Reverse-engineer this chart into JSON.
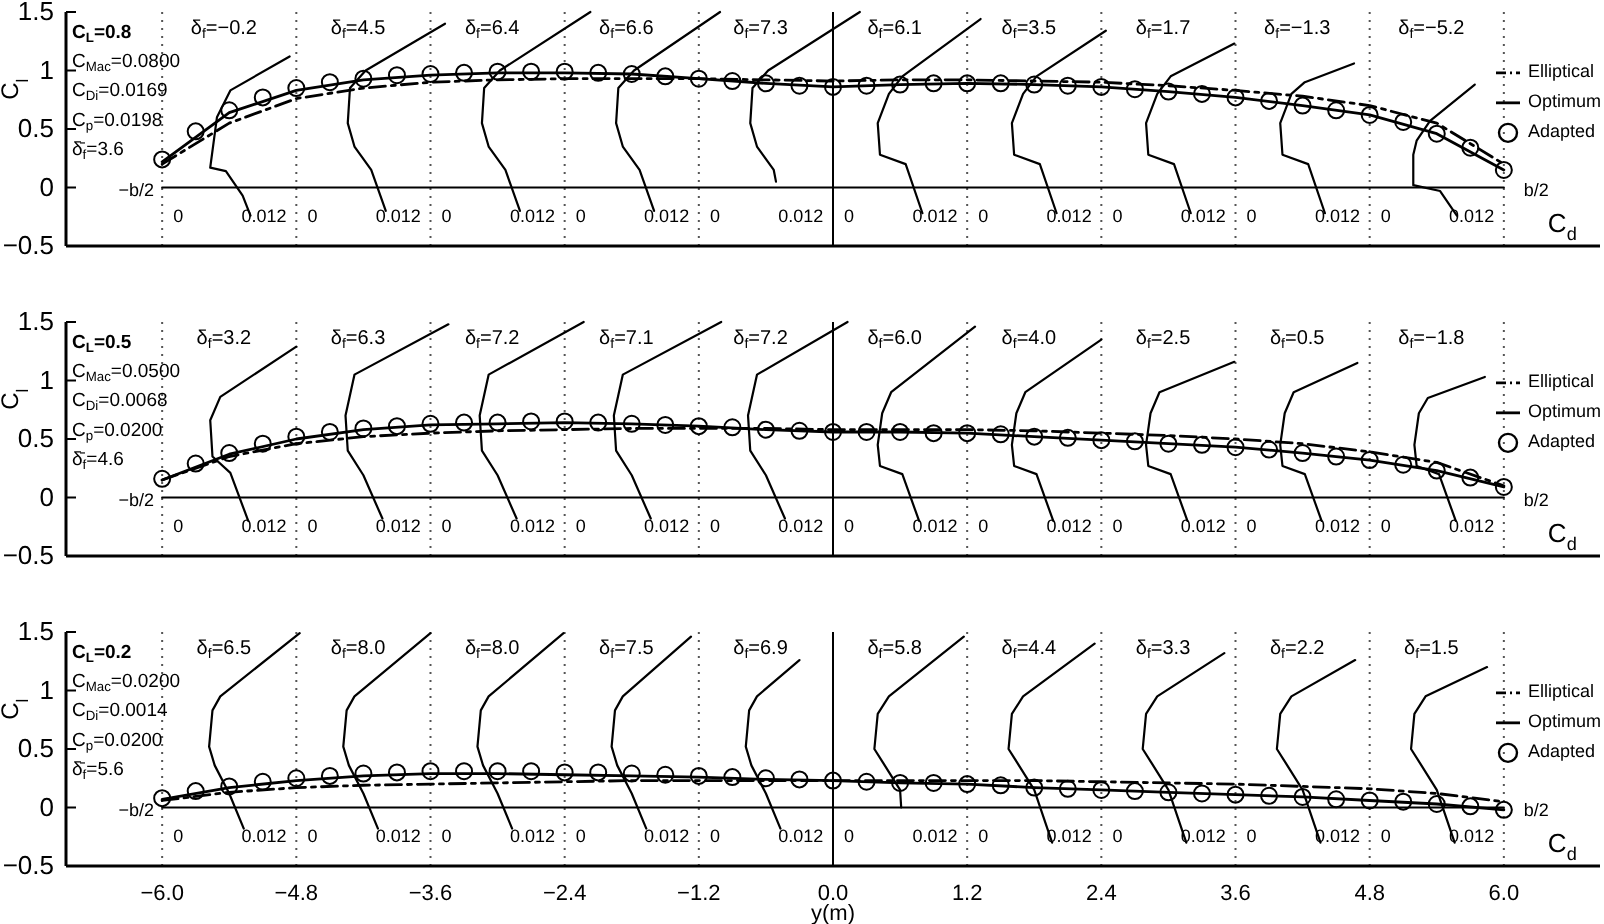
{
  "chart_data": [
    {
      "type": "line",
      "ylabel": "C$_{l}$",
      "xlim": [
        -6.86,
        6.86
      ],
      "ylim": [
        -0.5,
        1.5
      ],
      "yticks": [
        -0.5,
        0,
        0.5,
        1,
        1.5
      ],
      "tick_labels": "y",
      "legend": "right",
      "grid": false,
      "x": [
        -6,
        -5.7,
        -5.4,
        -5.1,
        -4.8,
        -4.5,
        -4.2,
        -3.9,
        -3.6,
        -3.3,
        -3,
        -2.7,
        -2.4,
        -2.1,
        -1.8,
        -1.5,
        -1.2,
        -0.9,
        -0.6,
        -0.3,
        0,
        0.3,
        0.6,
        0.9,
        1.2,
        1.5,
        1.8,
        2.1,
        2.4,
        2.7,
        3,
        3.3,
        3.6,
        3.9,
        4.2,
        4.5,
        4.8,
        5.1,
        5.4,
        5.7,
        6
      ],
      "ref_lines": [
        {
          "axis": "x",
          "value": -6,
          "line_style": "dotted",
          "color": "#555555"
        },
        {
          "axis": "x",
          "value": -4.8,
          "line_style": "dotted",
          "color": "#555555"
        },
        {
          "axis": "x",
          "value": -3.6,
          "line_style": "dotted",
          "color": "#555555"
        },
        {
          "axis": "x",
          "value": -2.4,
          "line_style": "dotted",
          "color": "#555555"
        },
        {
          "axis": "x",
          "value": -1.2,
          "line_style": "dotted",
          "color": "#555555"
        },
        {
          "axis": "x",
          "value": 0,
          "line_style": "solid",
          "color": "#000000"
        },
        {
          "axis": "x",
          "value": 1.2,
          "line_style": "dotted",
          "color": "#555555"
        },
        {
          "axis": "x",
          "value": 2.4,
          "line_style": "dotted",
          "color": "#555555"
        },
        {
          "axis": "x",
          "value": 3.6,
          "line_style": "dotted",
          "color": "#555555"
        },
        {
          "axis": "x",
          "value": 4.8,
          "line_style": "dotted",
          "color": "#555555"
        },
        {
          "axis": "x",
          "value": 6,
          "line_style": "dotted",
          "color": "#555555"
        }
      ],
      "series": [
        {
          "name": "Elliptical",
          "type": "line",
          "line_style": "dashed",
          "color": "#000000",
          "x": [
            -6,
            -5.4,
            -4.8,
            -4.2,
            -3.6,
            -3,
            -2.4,
            -1.8,
            -1.2,
            -0.6,
            0,
            0.6,
            1.2,
            1.8,
            2.4,
            3,
            3.6,
            4.2,
            4.8,
            5.4,
            6
          ],
          "values": [
            0.2,
            0.55,
            0.76,
            0.85,
            0.9,
            0.92,
            0.93,
            0.93,
            0.93,
            0.92,
            0.91,
            0.92,
            0.92,
            0.91,
            0.9,
            0.87,
            0.83,
            0.78,
            0.7,
            0.55,
            0.2
          ]
        },
        {
          "name": "Optimum",
          "type": "line",
          "line_style": "solid",
          "color": "#000000",
          "x": [
            -6,
            -5.4,
            -4.8,
            -4.2,
            -3.6,
            -3,
            -2.4,
            -1.8,
            -1.2,
            -0.6,
            0,
            0.6,
            1.2,
            1.8,
            2.4,
            3,
            3.6,
            4.2,
            4.8,
            5.4,
            6
          ],
          "values": [
            0.22,
            0.64,
            0.83,
            0.92,
            0.96,
            0.98,
            0.98,
            0.97,
            0.93,
            0.89,
            0.86,
            0.88,
            0.89,
            0.88,
            0.86,
            0.82,
            0.77,
            0.7,
            0.62,
            0.46,
            0.15
          ]
        },
        {
          "name": "Adapted",
          "type": "scatter",
          "marker": "circle",
          "color": "#000000",
          "values": [
            0.24,
            0.48,
            0.66,
            0.77,
            0.85,
            0.9,
            0.93,
            0.96,
            0.97,
            0.98,
            0.99,
            0.99,
            0.99,
            0.98,
            0.97,
            0.95,
            0.93,
            0.91,
            0.89,
            0.87,
            0.86,
            0.87,
            0.88,
            0.89,
            0.89,
            0.89,
            0.88,
            0.87,
            0.86,
            0.84,
            0.82,
            0.8,
            0.77,
            0.74,
            0.7,
            0.66,
            0.62,
            0.56,
            0.46,
            0.34,
            0.15
          ]
        },
        {
          "type": "line",
          "color": "#000000",
          "x": [
            -6,
            6
          ],
          "values": [
            0,
            0
          ]
        },
        {
          "type": "line",
          "color": "#000000",
          "x": [
            -4.86,
            -5.39,
            -5.51,
            -5.57,
            -5.43,
            -5.28,
            -5.21
          ],
          "values": [
            1.12,
            0.83,
            0.6,
            0.17,
            0.14,
            -0.07,
            -0.24
          ]
        },
        {
          "type": "line",
          "color": "#000000",
          "x": [
            -3.47,
            -4.18,
            -4.32,
            -4.34,
            -4.28,
            -4.13,
            -4.0
          ],
          "values": [
            1.4,
            1.0,
            0.85,
            0.55,
            0.35,
            0.15,
            -0.2
          ]
        },
        {
          "type": "line",
          "color": "#000000",
          "x": [
            -2.17,
            -2.98,
            -3.12,
            -3.14,
            -3.08,
            -2.93,
            -2.8
          ],
          "values": [
            1.5,
            1.0,
            0.85,
            0.55,
            0.35,
            0.15,
            -0.2
          ]
        },
        {
          "type": "line",
          "color": "#000000",
          "x": [
            -1.01,
            -1.78,
            -1.92,
            -1.94,
            -1.88,
            -1.73,
            -1.6
          ],
          "values": [
            1.5,
            1.0,
            0.85,
            0.55,
            0.35,
            0.15,
            -0.2
          ]
        },
        {
          "type": "line",
          "color": "#000000",
          "x": [
            0.24,
            -0.58,
            -0.72,
            -0.74,
            -0.68,
            -0.53,
            -0.51
          ],
          "values": [
            1.5,
            1.0,
            0.85,
            0.55,
            0.35,
            0.15,
            0.05
          ]
        },
        {
          "type": "line",
          "color": "#000000",
          "x": [
            1.32,
            0.62,
            0.5,
            0.4,
            0.42,
            0.65,
            0.8
          ],
          "values": [
            1.44,
            0.95,
            0.8,
            0.55,
            0.28,
            0.2,
            -0.22
          ]
        },
        {
          "type": "line",
          "color": "#000000",
          "x": [
            2.44,
            1.82,
            1.7,
            1.6,
            1.62,
            1.85,
            2.0
          ],
          "values": [
            1.34,
            0.95,
            0.8,
            0.55,
            0.28,
            0.2,
            -0.22
          ]
        },
        {
          "type": "line",
          "color": "#000000",
          "x": [
            3.59,
            3.02,
            2.9,
            2.8,
            2.82,
            3.05,
            3.2
          ],
          "values": [
            1.23,
            0.95,
            0.8,
            0.55,
            0.28,
            0.2,
            -0.22
          ]
        },
        {
          "type": "line",
          "color": "#000000",
          "x": [
            4.66,
            4.22,
            4.1,
            4.0,
            4.02,
            4.25,
            4.4
          ],
          "values": [
            1.06,
            0.9,
            0.8,
            0.55,
            0.28,
            0.2,
            -0.22
          ]
        },
        {
          "type": "line",
          "color": "#000000",
          "x": [
            5.74,
            5.34,
            5.22,
            5.19,
            5.19,
            5.43,
            5.58
          ],
          "values": [
            0.88,
            0.57,
            0.4,
            0.28,
            0.02,
            -0.03,
            -0.24
          ]
        }
      ],
      "annotations": [
        "C$_{L}$=0.8",
        "C$_{Mac}$=0.0800",
        "C$_{Di}$=0.0169",
        "C$_{p}$=0.0198",
        "δ̄$_{f}$=3.6",
        "δ$_{f}$=−0.2",
        "δ$_{f}$=4.5",
        "δ$_{f}$=6.4",
        "δ$_{f}$=6.6",
        "δ$_{f}$=7.3",
        "δ$_{f}$=6.1",
        "δ$_{f}$=3.5",
        "δ$_{f}$=1.7",
        "δ$_{f}$=−1.3",
        "δ$_{f}$=−5.2",
        "0",
        "0.012",
        "0",
        "0.012",
        "0",
        "0.012",
        "0",
        "0.012",
        "0",
        "0.012",
        "0",
        "0.012",
        "0",
        "0.012",
        "0",
        "0.012",
        "0",
        "0.012",
        "0",
        "0.012",
        "−b/2",
        "b/2",
        "C$_{d}$"
      ]
    },
    {
      "type": "line",
      "ylabel": "C$_{l}$",
      "xlim": [
        -6.86,
        6.86
      ],
      "ylim": [
        -0.5,
        1.5
      ],
      "yticks": [
        -0.5,
        0,
        0.5,
        1,
        1.5
      ],
      "tick_labels": "y",
      "legend": "right",
      "grid": false,
      "x": [
        -6,
        -5.7,
        -5.4,
        -5.1,
        -4.8,
        -4.5,
        -4.2,
        -3.9,
        -3.6,
        -3.3,
        -3,
        -2.7,
        -2.4,
        -2.1,
        -1.8,
        -1.5,
        -1.2,
        -0.9,
        -0.6,
        -0.3,
        0,
        0.3,
        0.6,
        0.9,
        1.2,
        1.5,
        1.8,
        2.1,
        2.4,
        2.7,
        3,
        3.3,
        3.6,
        3.9,
        4.2,
        4.5,
        4.8,
        5.1,
        5.4,
        5.7,
        6
      ],
      "ref_lines": [
        {
          "axis": "x",
          "value": -6,
          "line_style": "dotted",
          "color": "#555555"
        },
        {
          "axis": "x",
          "value": -4.8,
          "line_style": "dotted",
          "color": "#555555"
        },
        {
          "axis": "x",
          "value": -3.6,
          "line_style": "dotted",
          "color": "#555555"
        },
        {
          "axis": "x",
          "value": -2.4,
          "line_style": "dotted",
          "color": "#555555"
        },
        {
          "axis": "x",
          "value": -1.2,
          "line_style": "dotted",
          "color": "#555555"
        },
        {
          "axis": "x",
          "value": 0,
          "line_style": "solid",
          "color": "#000000"
        },
        {
          "axis": "x",
          "value": 1.2,
          "line_style": "dotted",
          "color": "#555555"
        },
        {
          "axis": "x",
          "value": 2.4,
          "line_style": "dotted",
          "color": "#555555"
        },
        {
          "axis": "x",
          "value": 3.6,
          "line_style": "dotted",
          "color": "#555555"
        },
        {
          "axis": "x",
          "value": 4.8,
          "line_style": "dotted",
          "color": "#555555"
        },
        {
          "axis": "x",
          "value": 6,
          "line_style": "dotted",
          "color": "#555555"
        }
      ],
      "series": [
        {
          "name": "Elliptical",
          "type": "line",
          "line_style": "dashed",
          "color": "#000000",
          "x": [
            -6,
            -5.4,
            -4.8,
            -4.2,
            -3.6,
            -3,
            -2.4,
            -1.8,
            -1.2,
            -0.6,
            0,
            0.6,
            1.2,
            1.8,
            2.4,
            3,
            3.6,
            4.2,
            4.8,
            5.4,
            6
          ],
          "values": [
            0.15,
            0.35,
            0.46,
            0.52,
            0.55,
            0.57,
            0.58,
            0.59,
            0.59,
            0.59,
            0.58,
            0.58,
            0.58,
            0.57,
            0.55,
            0.53,
            0.5,
            0.46,
            0.39,
            0.3,
            0.1
          ]
        },
        {
          "name": "Optimum",
          "type": "line",
          "line_style": "solid",
          "color": "#000000",
          "x": [
            -6,
            -5.4,
            -4.8,
            -4.2,
            -3.6,
            -3,
            -2.4,
            -1.8,
            -1.2,
            -0.6,
            0,
            0.6,
            1.2,
            1.8,
            2.4,
            3,
            3.6,
            4.2,
            4.8,
            5.4,
            6
          ],
          "values": [
            0.15,
            0.37,
            0.5,
            0.58,
            0.62,
            0.63,
            0.64,
            0.63,
            0.61,
            0.58,
            0.56,
            0.56,
            0.55,
            0.52,
            0.49,
            0.46,
            0.43,
            0.38,
            0.32,
            0.23,
            0.09
          ]
        },
        {
          "name": "Adapted",
          "type": "scatter",
          "marker": "circle",
          "color": "#000000",
          "values": [
            0.16,
            0.29,
            0.38,
            0.46,
            0.52,
            0.56,
            0.59,
            0.61,
            0.63,
            0.64,
            0.64,
            0.65,
            0.65,
            0.64,
            0.63,
            0.62,
            0.61,
            0.6,
            0.58,
            0.57,
            0.56,
            0.56,
            0.56,
            0.55,
            0.55,
            0.54,
            0.52,
            0.51,
            0.49,
            0.48,
            0.46,
            0.45,
            0.43,
            0.41,
            0.38,
            0.35,
            0.32,
            0.28,
            0.23,
            0.17,
            0.09
          ]
        },
        {
          "type": "line",
          "color": "#000000",
          "x": [
            -6,
            6
          ],
          "values": [
            0,
            0
          ]
        },
        {
          "type": "line",
          "color": "#000000",
          "x": [
            -4.8,
            -5.48,
            -5.57,
            -5.55,
            -5.39,
            -5.23
          ],
          "values": [
            1.29,
            0.86,
            0.66,
            0.35,
            0.21,
            -0.2
          ]
        },
        {
          "type": "line",
          "color": "#000000",
          "x": [
            -3.44,
            -4.28,
            -4.36,
            -4.34,
            -4.2,
            -4.03
          ],
          "values": [
            1.48,
            1.05,
            0.7,
            0.4,
            0.19,
            -0.18
          ]
        },
        {
          "type": "line",
          "color": "#000000",
          "x": [
            -2.23,
            -3.08,
            -3.16,
            -3.14,
            -3.0,
            -2.83
          ],
          "values": [
            1.5,
            1.05,
            0.7,
            0.4,
            0.19,
            -0.18
          ]
        },
        {
          "type": "line",
          "color": "#000000",
          "x": [
            -1.0,
            -1.88,
            -1.96,
            -1.94,
            -1.8,
            -1.63
          ],
          "values": [
            1.5,
            1.05,
            0.7,
            0.4,
            0.19,
            -0.18
          ]
        },
        {
          "type": "line",
          "color": "#000000",
          "x": [
            0.13,
            -0.68,
            -0.76,
            -0.74,
            -0.6,
            -0.43
          ],
          "values": [
            1.5,
            1.05,
            0.7,
            0.4,
            0.19,
            -0.18
          ]
        },
        {
          "type": "line",
          "color": "#000000",
          "x": [
            1.27,
            0.52,
            0.44,
            0.4,
            0.42,
            0.62,
            0.77
          ],
          "values": [
            1.46,
            0.9,
            0.72,
            0.45,
            0.27,
            0.2,
            -0.2
          ]
        },
        {
          "type": "line",
          "color": "#000000",
          "x": [
            2.4,
            1.72,
            1.64,
            1.6,
            1.62,
            1.82,
            1.97
          ],
          "values": [
            1.35,
            0.9,
            0.72,
            0.45,
            0.27,
            0.2,
            -0.2
          ]
        },
        {
          "type": "line",
          "color": "#000000",
          "x": [
            3.59,
            2.92,
            2.84,
            2.8,
            2.82,
            3.02,
            3.17
          ],
          "values": [
            1.16,
            0.9,
            0.72,
            0.45,
            0.27,
            0.2,
            -0.2
          ]
        },
        {
          "type": "line",
          "color": "#000000",
          "x": [
            4.69,
            4.12,
            4.04,
            4.0,
            4.02,
            4.22,
            4.37
          ],
          "values": [
            1.15,
            0.9,
            0.72,
            0.45,
            0.27,
            0.2,
            -0.2
          ]
        },
        {
          "type": "line",
          "color": "#000000",
          "x": [
            5.83,
            5.32,
            5.24,
            5.2,
            5.22,
            5.42,
            5.57
          ],
          "values": [
            1.03,
            0.85,
            0.72,
            0.45,
            0.27,
            0.2,
            -0.2
          ]
        }
      ],
      "annotations": [
        "C$_{L}$=0.5",
        "C$_{Mac}$=0.0500",
        "C$_{Di}$=0.0068",
        "C$_{p}$=0.0200",
        "δ̄$_{f}$=4.6",
        "δ$_{f}$=3.2",
        "δ$_{f}$=6.3",
        "δ$_{f}$=7.2",
        "δ$_{f}$=7.1",
        "δ$_{f}$=7.2",
        "δ$_{f}$=6.0",
        "δ$_{f}$=4.0",
        "δ$_{f}$=2.5",
        "δ$_{f}$=0.5",
        "δ$_{f}$=−1.8",
        "0",
        "0.012",
        "0",
        "0.012",
        "0",
        "0.012",
        "0",
        "0.012",
        "0",
        "0.012",
        "0",
        "0.012",
        "0",
        "0.012",
        "0",
        "0.012",
        "0",
        "0.012",
        "0",
        "0.012",
        "−b/2",
        "b/2",
        "C$_{d}$"
      ]
    },
    {
      "type": "line",
      "ylabel": "C$_{l}$",
      "xlabel": "y(m)",
      "xlim": [
        -6.86,
        6.86
      ],
      "ylim": [
        -0.5,
        1.5
      ],
      "yticks": [
        -0.5,
        0,
        0.5,
        1,
        1.5
      ],
      "xticks": [
        {
          "value": -6,
          "label": "−6.0"
        },
        {
          "value": -4.8,
          "label": "−4.8"
        },
        {
          "value": -3.6,
          "label": "−3.6"
        },
        {
          "value": -2.4,
          "label": "−2.4"
        },
        {
          "value": -1.2,
          "label": "−1.2"
        },
        {
          "value": 0,
          "label": "0.0"
        },
        1.2,
        2.4,
        3.6,
        4.8,
        {
          "value": 6,
          "label": "6.0"
        }
      ],
      "legend": "right",
      "grid": false,
      "x": [
        -6,
        -5.7,
        -5.4,
        -5.1,
        -4.8,
        -4.5,
        -4.2,
        -3.9,
        -3.6,
        -3.3,
        -3,
        -2.7,
        -2.4,
        -2.1,
        -1.8,
        -1.5,
        -1.2,
        -0.9,
        -0.6,
        -0.3,
        0,
        0.3,
        0.6,
        0.9,
        1.2,
        1.5,
        1.8,
        2.1,
        2.4,
        2.7,
        3,
        3.3,
        3.6,
        3.9,
        4.2,
        4.5,
        4.8,
        5.1,
        5.4,
        5.7,
        6
      ],
      "ref_lines": [
        {
          "axis": "x",
          "value": -6,
          "line_style": "dotted",
          "color": "#555555"
        },
        {
          "axis": "x",
          "value": -4.8,
          "line_style": "dotted",
          "color": "#555555"
        },
        {
          "axis": "x",
          "value": -3.6,
          "line_style": "dotted",
          "color": "#555555"
        },
        {
          "axis": "x",
          "value": -2.4,
          "line_style": "dotted",
          "color": "#555555"
        },
        {
          "axis": "x",
          "value": -1.2,
          "line_style": "dotted",
          "color": "#555555"
        },
        {
          "axis": "x",
          "value": 0,
          "line_style": "solid",
          "color": "#000000"
        },
        {
          "axis": "x",
          "value": 1.2,
          "line_style": "dotted",
          "color": "#555555"
        },
        {
          "axis": "x",
          "value": 2.4,
          "line_style": "dotted",
          "color": "#555555"
        },
        {
          "axis": "x",
          "value": 3.6,
          "line_style": "dotted",
          "color": "#555555"
        },
        {
          "axis": "x",
          "value": 4.8,
          "line_style": "dotted",
          "color": "#555555"
        },
        {
          "axis": "x",
          "value": 6,
          "line_style": "dotted",
          "color": "#555555"
        }
      ],
      "series": [
        {
          "name": "Elliptical",
          "type": "line",
          "line_style": "dashed",
          "color": "#000000",
          "x": [
            -6,
            -5.4,
            -4.8,
            -4.2,
            -3.6,
            -3,
            -2.4,
            -1.8,
            -1.2,
            -0.6,
            0,
            0.6,
            1.2,
            1.8,
            2.4,
            3,
            3.6,
            4.2,
            4.8,
            5.4,
            6
          ],
          "values": [
            0.06,
            0.13,
            0.17,
            0.19,
            0.2,
            0.21,
            0.22,
            0.23,
            0.23,
            0.23,
            0.23,
            0.23,
            0.23,
            0.23,
            0.22,
            0.21,
            0.2,
            0.18,
            0.16,
            0.12,
            0.05
          ]
        },
        {
          "name": "Optimum",
          "type": "line",
          "line_style": "solid",
          "color": "#000000",
          "x": [
            -6,
            -5.4,
            -4.8,
            -4.2,
            -3.6,
            -3,
            -2.4,
            -1.8,
            -1.2,
            -0.6,
            0,
            0.6,
            1.2,
            1.8,
            2.4,
            3,
            3.6,
            4.2,
            4.8,
            5.4,
            6
          ],
          "values": [
            0.07,
            0.17,
            0.23,
            0.27,
            0.29,
            0.29,
            0.28,
            0.27,
            0.26,
            0.24,
            0.23,
            0.21,
            0.2,
            0.17,
            0.15,
            0.13,
            0.11,
            0.09,
            0.06,
            0.03,
            -0.02
          ]
        },
        {
          "name": "Adapted",
          "type": "scatter",
          "marker": "circle",
          "color": "#000000",
          "values": [
            0.08,
            0.14,
            0.18,
            0.22,
            0.25,
            0.27,
            0.29,
            0.3,
            0.31,
            0.31,
            0.31,
            0.31,
            0.3,
            0.3,
            0.29,
            0.28,
            0.27,
            0.26,
            0.25,
            0.24,
            0.23,
            0.22,
            0.21,
            0.21,
            0.2,
            0.19,
            0.17,
            0.16,
            0.15,
            0.14,
            0.13,
            0.12,
            0.11,
            0.1,
            0.09,
            0.07,
            0.06,
            0.05,
            0.03,
            0.01,
            -0.02
          ]
        },
        {
          "type": "line",
          "color": "#000000",
          "x": [
            -6,
            6
          ],
          "values": [
            0,
            0
          ]
        },
        {
          "type": "line",
          "color": "#000000",
          "x": [
            -4.77,
            -5.48,
            -5.55,
            -5.58,
            -5.53,
            -5.4,
            -5.27
          ],
          "values": [
            1.49,
            0.95,
            0.83,
            0.52,
            0.36,
            0.12,
            -0.18
          ]
        },
        {
          "type": "line",
          "color": "#000000",
          "x": [
            -3.6,
            -4.28,
            -4.35,
            -4.38,
            -4.33,
            -4.2,
            -4.07
          ],
          "values": [
            1.49,
            0.95,
            0.83,
            0.52,
            0.36,
            0.12,
            -0.18
          ]
        },
        {
          "type": "line",
          "color": "#000000",
          "x": [
            -2.41,
            -3.08,
            -3.15,
            -3.18,
            -3.13,
            -3.0,
            -2.87
          ],
          "values": [
            1.49,
            0.95,
            0.83,
            0.52,
            0.36,
            0.12,
            -0.18
          ]
        },
        {
          "type": "line",
          "color": "#000000",
          "x": [
            -1.27,
            -1.88,
            -1.95,
            -1.98,
            -1.93,
            -1.8,
            -1.67
          ],
          "values": [
            1.46,
            0.95,
            0.83,
            0.52,
            0.36,
            0.12,
            -0.18
          ]
        },
        {
          "type": "line",
          "color": "#000000",
          "x": [
            -0.3,
            -0.68,
            -0.75,
            -0.78,
            -0.73,
            -0.6,
            -0.47
          ],
          "values": [
            1.26,
            0.95,
            0.83,
            0.52,
            0.36,
            0.12,
            -0.18
          ]
        },
        {
          "type": "line",
          "color": "#000000",
          "x": [
            1.17,
            0.5,
            0.4,
            0.37,
            0.45,
            0.6,
            0.61
          ],
          "values": [
            1.46,
            0.95,
            0.8,
            0.5,
            0.38,
            0.15,
            0.0
          ]
        },
        {
          "type": "line",
          "color": "#000000",
          "x": [
            2.34,
            1.7,
            1.6,
            1.57,
            1.65,
            1.8,
            1.96
          ],
          "values": [
            1.4,
            0.95,
            0.8,
            0.5,
            0.38,
            0.15,
            -0.3
          ]
        },
        {
          "type": "line",
          "color": "#000000",
          "x": [
            3.5,
            2.9,
            2.8,
            2.77,
            2.85,
            3.0,
            3.16
          ],
          "values": [
            1.32,
            0.95,
            0.8,
            0.5,
            0.38,
            0.15,
            -0.3
          ]
        },
        {
          "type": "line",
          "color": "#000000",
          "x": [
            4.67,
            4.1,
            4.0,
            3.97,
            4.05,
            4.2,
            4.36
          ],
          "values": [
            1.26,
            0.95,
            0.8,
            0.5,
            0.38,
            0.15,
            -0.3
          ]
        },
        {
          "type": "line",
          "color": "#000000",
          "x": [
            5.85,
            5.3,
            5.2,
            5.17,
            5.25,
            5.4,
            5.56
          ],
          "values": [
            1.2,
            0.95,
            0.8,
            0.5,
            0.38,
            0.15,
            -0.3
          ]
        }
      ],
      "annotations": [
        "C$_{L}$=0.2",
        "C$_{Mac}$=0.0200",
        "C$_{Di}$=0.0014",
        "C$_{p}$=0.0200",
        "δ̄$_{f}$=5.6",
        "δ$_{f}$=6.5",
        "δ$_{f}$=8.0",
        "δ$_{f}$=8.0",
        "δ$_{f}$=7.5",
        "δ$_{f}$=6.9",
        "δ$_{f}$=5.8",
        "δ$_{f}$=4.4",
        "δ$_{f}$=3.3",
        "δ$_{f}$=2.2",
        "δ$_{f}$=1.5",
        "0",
        "0.012",
        "0",
        "0.012",
        "0",
        "0.012",
        "0",
        "0.012",
        "0",
        "0.012",
        "0",
        "0.012",
        "0",
        "0.012",
        "0",
        "0.012",
        "0",
        "0.012",
        "0",
        "0.012",
        "−b/2",
        "b/2",
        "C$_{d}$"
      ]
    }
  ]
}
